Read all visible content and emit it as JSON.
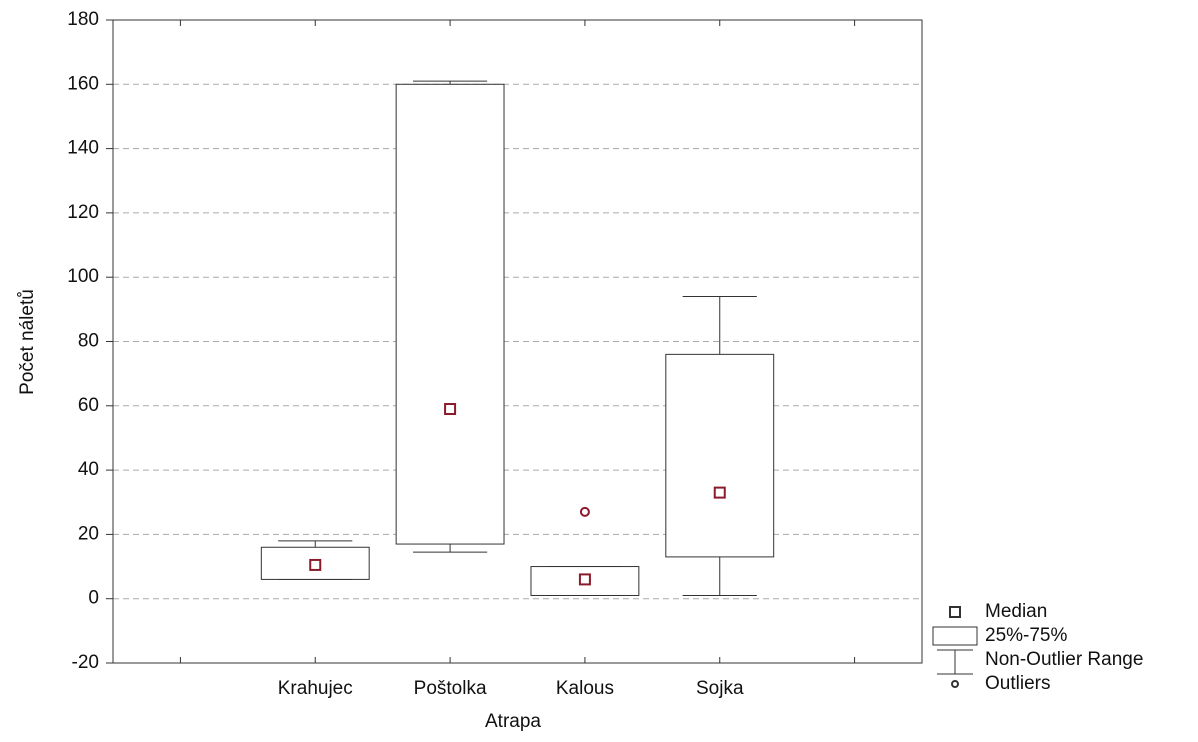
{
  "chart_data": {
    "type": "box",
    "x_label": "Atrapa",
    "y_label": "Počet náletů",
    "categories": [
      null,
      "Krahujec",
      "Poštolka",
      "Kalous",
      "Sojka",
      null
    ],
    "median": [
      null,
      10.5,
      59,
      6,
      33,
      null
    ],
    "q1": [
      null,
      6,
      17,
      1,
      13,
      null
    ],
    "q3": [
      null,
      16,
      160,
      10,
      76,
      null
    ],
    "whisker_low": [
      null,
      6,
      14.5,
      1,
      1,
      null
    ],
    "whisker_high": [
      null,
      18,
      161,
      10,
      94,
      null
    ],
    "outliers": [
      [],
      [],
      [],
      [
        27
      ],
      [],
      []
    ],
    "ylim": [
      -20,
      180
    ],
    "yticks": [
      -20,
      0,
      20,
      40,
      60,
      80,
      100,
      120,
      140,
      160,
      180
    ],
    "grid": true,
    "box_color": "#333333",
    "marker_color": "#8b1a2b",
    "legend": {
      "position": "lower right",
      "median": "Median",
      "box": "25%-75%",
      "whisker": "Non-Outlier Range",
      "outliers": "Outliers"
    }
  }
}
